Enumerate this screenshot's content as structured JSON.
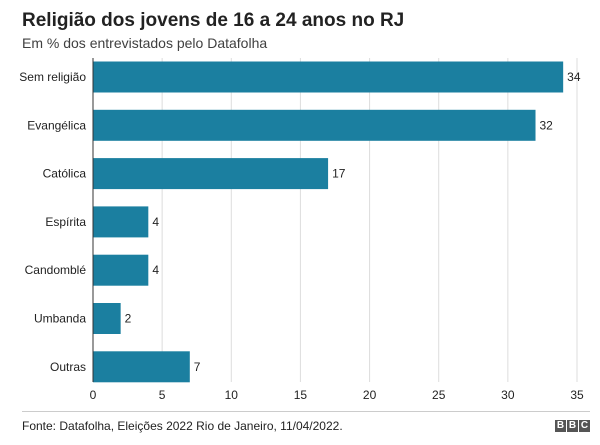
{
  "chart_data": {
    "type": "bar",
    "orientation": "horizontal",
    "title": "Religião dos jovens de 16 a 24 anos no RJ",
    "subtitle": "Em % dos entrevistados pelo Datafolha",
    "categories": [
      "Sem religião",
      "Evangélica",
      "Católica",
      "Espírita",
      "Candomblé",
      "Umbanda",
      "Outras"
    ],
    "values": [
      34,
      32,
      17,
      4,
      4,
      2,
      7
    ],
    "xticks": [
      0,
      5,
      10,
      15,
      20,
      25,
      30,
      35
    ],
    "xlim": [
      0,
      35
    ],
    "xlabel": "",
    "ylabel": "",
    "grid": true,
    "bar_color": "#1b7fa0"
  },
  "footer": {
    "source": "Fonte: Datafolha, Eleições 2022 Rio de Janeiro, 11/04/2022.",
    "logo_letters": [
      "B",
      "B",
      "C"
    ]
  }
}
